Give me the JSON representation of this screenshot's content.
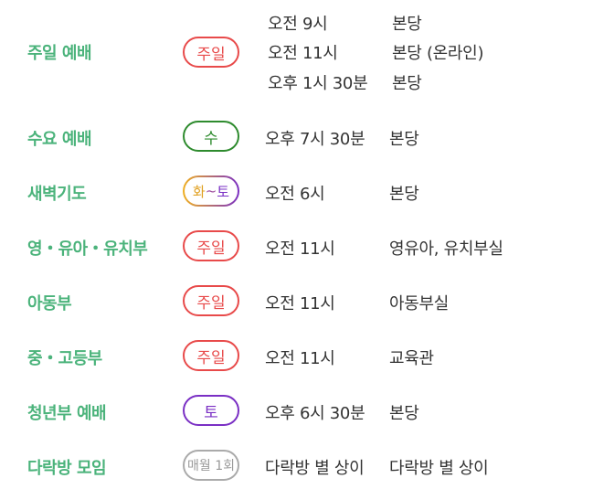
{
  "schedule": [
    {
      "name": "주일 예배",
      "badge": "주일",
      "badge_style": "red",
      "times": [
        "오전 9시",
        "오전 11시",
        "오후 1시 30분"
      ],
      "places": [
        "본당",
        "본당 (온라인)",
        "본당"
      ]
    },
    {
      "name": "수요 예배",
      "badge": "수",
      "badge_style": "green",
      "time": "오후 7시 30분",
      "place": "본당"
    },
    {
      "name": "새벽기도",
      "badge_parts": [
        "화",
        "~",
        "토"
      ],
      "badge_style": "gradient",
      "time": "오전 6시",
      "place": "본당"
    },
    {
      "name": "영・유아・유치부",
      "badge": "주일",
      "badge_style": "red",
      "time": "오전 11시",
      "place": "영유아, 유치부실"
    },
    {
      "name": "아동부",
      "badge": "주일",
      "badge_style": "red",
      "time": "오전 11시",
      "place": "아동부실"
    },
    {
      "name": "중・고등부",
      "badge": "주일",
      "badge_style": "red",
      "time": "오전 11시",
      "place": "교육관"
    },
    {
      "name": "청년부 예배",
      "badge": "토",
      "badge_style": "purple",
      "time": "오후 6시 30분",
      "place": "본당"
    },
    {
      "name": "다락방 모임",
      "badge": "매월 1회",
      "badge_style": "gray",
      "time": "다락방 별 상이",
      "place": "다락방 별 상이"
    }
  ],
  "colors": {
    "name_green": "#4bb37b",
    "badge_red": "#e84a4a",
    "badge_green": "#2e8b2e",
    "badge_purple": "#7a2fc4",
    "badge_gray": "#aaaaaa",
    "text": "#333333"
  }
}
